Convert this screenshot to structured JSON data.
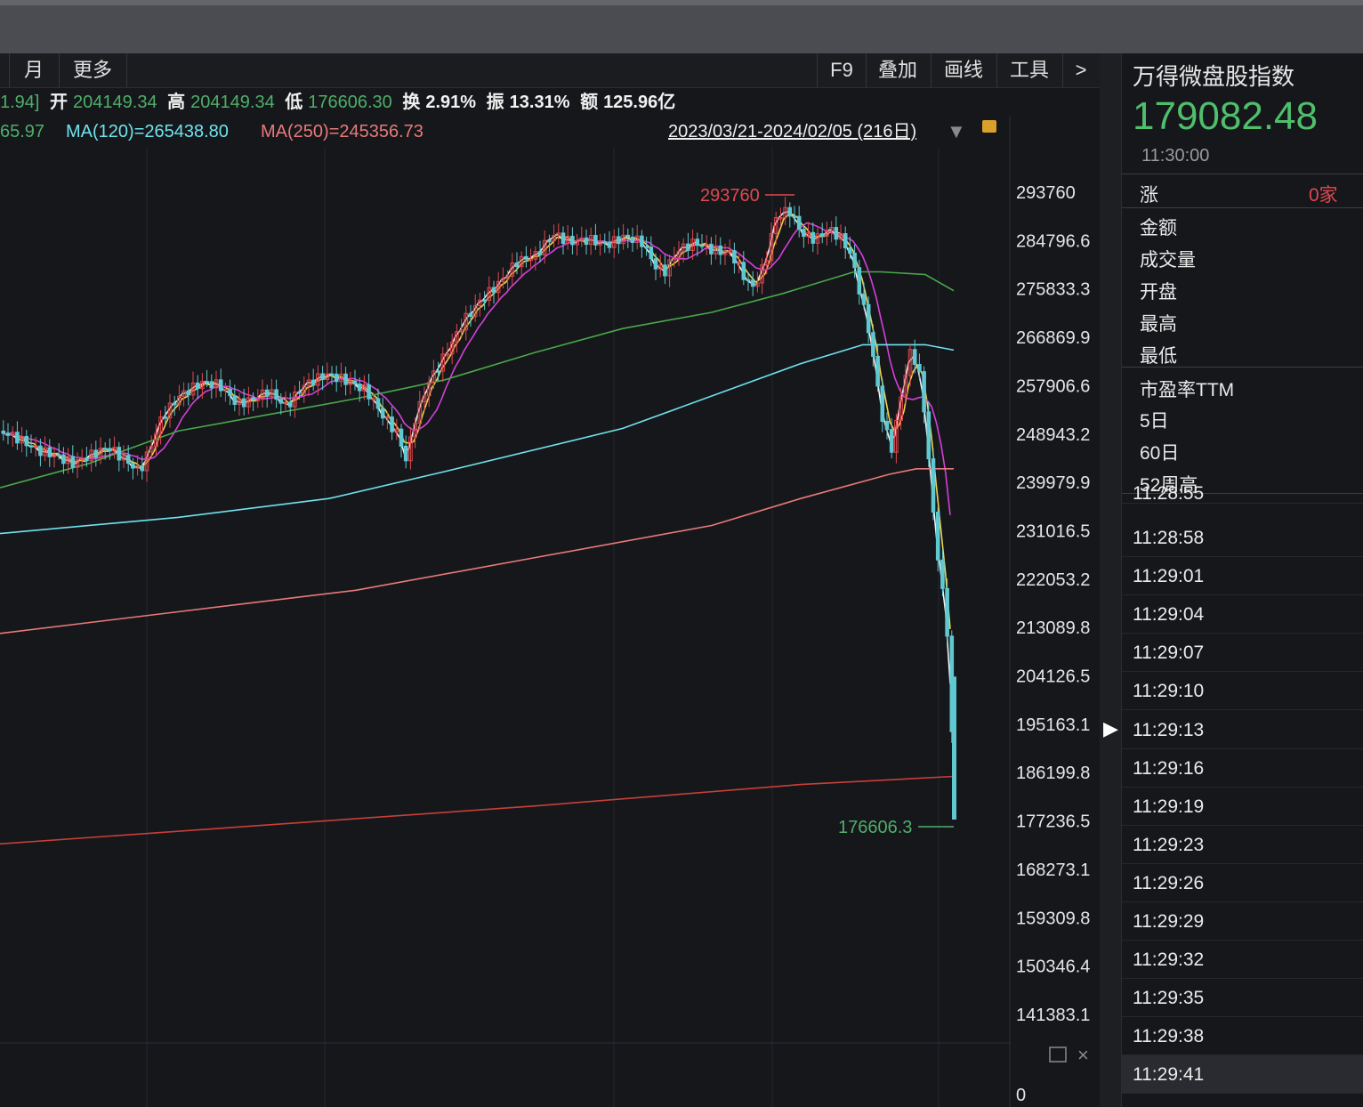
{
  "toolbar": {
    "left_items": [
      "月",
      "更多"
    ],
    "right_items": [
      "F9",
      "叠加",
      "画线",
      "工具",
      ">"
    ]
  },
  "info": {
    "prev_close_fragment": "1.94]",
    "open_label": "开",
    "open": "204149.34",
    "high_label": "高",
    "high": "204149.34",
    "low_label": "低",
    "low": "176606.30",
    "turnover_label": "换",
    "turnover": "2.91%",
    "amplitude_label": "振",
    "amplitude": "13.31%",
    "amount_label": "额",
    "amount": "125.96亿"
  },
  "ma": {
    "ma_fragment": "65.97",
    "ma120": "MA(120)=265438.80",
    "ma250": "MA(250)=245356.73",
    "range": "2023/03/21-2024/02/05 (216日)"
  },
  "chart_data": {
    "type": "candlestick",
    "y_ticks": [
      "293760",
      "284796.6",
      "275833.3",
      "266869.9",
      "257906.6",
      "248943.2",
      "239979.9",
      "231016.5",
      "222053.2",
      "213089.8",
      "204126.5",
      "195163.1",
      "186199.8",
      "177236.5",
      "168273.1",
      "159309.8",
      "150346.4",
      "141383.1"
    ],
    "ylim": [
      141383.1,
      293760
    ],
    "high_marker": "293760",
    "low_marker": "176606.3",
    "volume_axis_zero": "0",
    "colors": {
      "up": "#e0484e",
      "down": "#5fc8d0",
      "ma5": "#f2f2f2",
      "ma10": "#f0d44a",
      "ma20": "#d43fd9",
      "ma60": "#4aa84a",
      "ma120": "#6fe3ee",
      "ma250": "#e87a7a",
      "ma500": "#c84038"
    }
  },
  "panel": {
    "title": "万得微盘股指数",
    "price": "179082.48",
    "time": "11:30:00",
    "rise_label": "涨",
    "rise_value": "0家",
    "fields": [
      "金额",
      "成交量",
      "开盘",
      "最高",
      "最低",
      "市盈率TTM",
      "5日",
      "60日",
      "52周高"
    ],
    "ticks": [
      "11:28:55",
      "11:28:58",
      "11:29:01",
      "11:29:04",
      "11:29:07",
      "11:29:10",
      "11:29:13",
      "11:29:16",
      "11:29:19",
      "11:29:23",
      "11:29:26",
      "11:29:29",
      "11:29:32",
      "11:29:35",
      "11:29:38",
      "11:29:41"
    ]
  }
}
